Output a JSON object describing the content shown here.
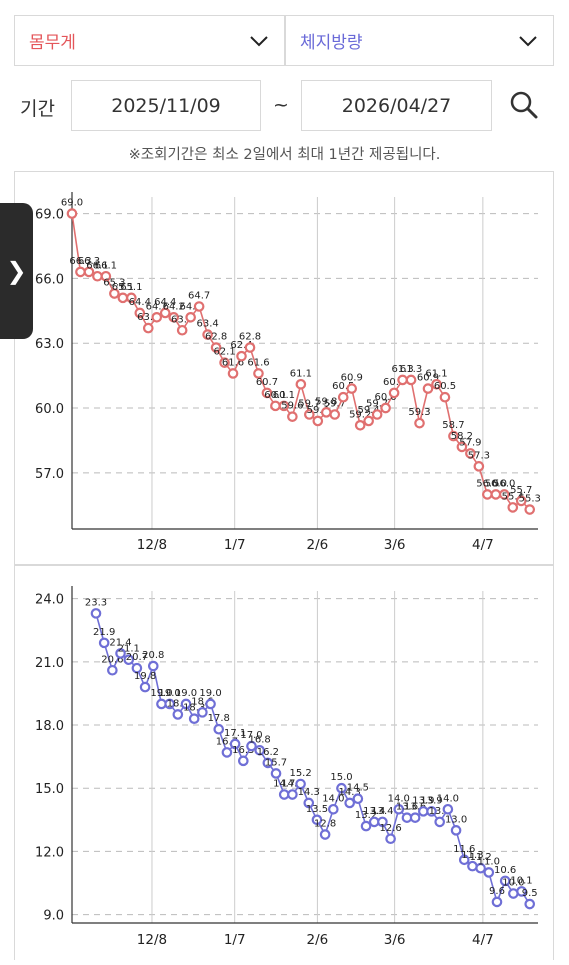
{
  "filters": {
    "metric_a": "몸무게",
    "metric_b": "체지방량",
    "metric_a_color": "#e4565a",
    "metric_b_color": "#6a6ad8"
  },
  "period": {
    "label": "기간",
    "start": "2025/11/09",
    "separator": "~",
    "end": "2026/04/27",
    "notice": "※조회기간은 최소 2일에서 최대 1년간 제공됩니다."
  },
  "side_handle": "❯",
  "chart_data": [
    {
      "type": "line",
      "series": [
        {
          "color": "#e07070",
          "values": [
            69.0,
            66.3,
            66.3,
            66.1,
            66.1,
            65.3,
            65.1,
            65.1,
            64.4,
            63.7,
            64.2,
            64.4,
            64.2,
            63.6,
            64.2,
            64.7,
            63.4,
            62.8,
            62.1,
            61.6,
            62.4,
            62.8,
            61.6,
            60.7,
            60.1,
            60.1,
            59.6,
            61.1,
            59.7,
            59.4,
            59.8,
            59.7,
            60.5,
            60.9,
            59.2,
            59.4,
            59.7,
            60.0,
            60.7,
            61.3,
            61.3,
            59.3,
            60.9,
            61.1,
            60.5,
            58.7,
            58.2,
            57.9,
            57.3,
            56.0,
            56.0,
            56.0,
            55.4,
            55.7,
            55.3
          ]
        }
      ],
      "x_start": "2025-11-09",
      "x_end": "2026-04-27",
      "x_ticks": [
        {
          "label": "12/8",
          "date": "2025-12-08"
        },
        {
          "label": "1/7",
          "date": "2026-01-07"
        },
        {
          "label": "2/6",
          "date": "2026-02-06"
        },
        {
          "label": "3/6",
          "date": "2026-03-06"
        },
        {
          "label": "4/7",
          "date": "2026-04-07"
        }
      ],
      "y_ticks": [
        "69.0",
        "66.0",
        "63.0",
        "60.0",
        "57.0"
      ],
      "ylim": [
        54.4,
        70.0
      ],
      "grid": true
    },
    {
      "type": "line",
      "series": [
        {
          "color": "#6f6fd6",
          "values": [
            23.3,
            21.9,
            20.6,
            21.4,
            21.1,
            20.7,
            19.8,
            20.8,
            19.0,
            19.0,
            18.5,
            19.0,
            18.3,
            18.6,
            19.0,
            17.8,
            16.7,
            17.1,
            16.3,
            17.0,
            16.8,
            16.2,
            15.7,
            14.7,
            14.7,
            15.2,
            14.3,
            13.5,
            12.8,
            14.0,
            15.0,
            14.3,
            14.5,
            13.2,
            13.4,
            13.4,
            12.6,
            14.0,
            13.6,
            13.6,
            13.9,
            13.9,
            13.4,
            14.0,
            13.0,
            11.6,
            11.3,
            11.2,
            11.0,
            9.6,
            10.6,
            10.0,
            10.1,
            9.5
          ]
        }
      ],
      "x_start": "2025-11-09",
      "x_end": "2026-04-27",
      "x_ticks": [
        {
          "label": "12/8",
          "date": "2025-12-08"
        },
        {
          "label": "1/7",
          "date": "2026-01-07"
        },
        {
          "label": "2/6",
          "date": "2026-02-06"
        },
        {
          "label": "3/6",
          "date": "2026-03-06"
        },
        {
          "label": "4/7",
          "date": "2026-04-07"
        }
      ],
      "y_ticks": [
        "24.0",
        "21.0",
        "18.0",
        "15.0",
        "12.0",
        "9.0"
      ],
      "ylim": [
        8.6,
        24.6
      ],
      "grid": true
    }
  ]
}
